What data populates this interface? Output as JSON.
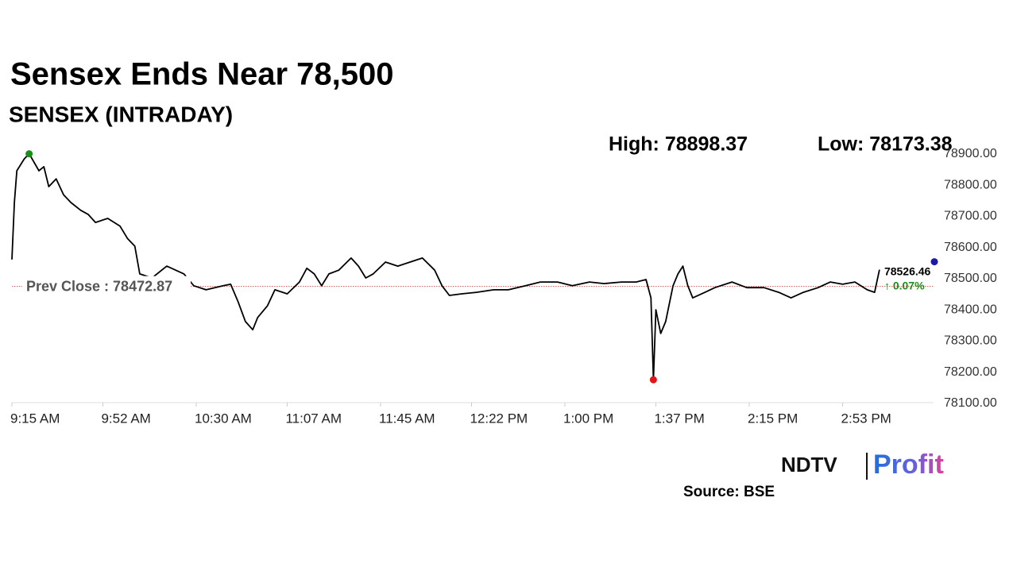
{
  "chart_data": {
    "type": "line",
    "title": "Sensex Ends Near 78,500",
    "subtitle": "SENSEX (INTRADAY)",
    "x": [
      "9:15 AM",
      "9:16 AM",
      "9:17 AM",
      "9:20 AM",
      "9:22 AM",
      "9:26 AM",
      "9:28 AM",
      "9:30 AM",
      "9:33 AM",
      "9:36 AM",
      "9:39 AM",
      "9:43 AM",
      "9:46 AM",
      "9:49 AM",
      "9:54 AM",
      "9:59 AM",
      "10:02 AM",
      "10:05 AM",
      "10:07 AM",
      "10:12 AM",
      "10:18 AM",
      "10:25 AM",
      "10:29 AM",
      "10:34 AM",
      "10:41 AM",
      "10:44 AM",
      "10:47 AM",
      "10:50 AM",
      "10:53 AM",
      "10:55 AM",
      "10:59 AM",
      "11:02 AM",
      "11:07 AM",
      "11:12 AM",
      "11:15 AM",
      "11:18 AM",
      "11:21 AM",
      "11:24 AM",
      "11:28 AM",
      "11:33 AM",
      "11:36 AM",
      "11:39 AM",
      "11:42 AM",
      "11:47 AM",
      "11:52 AM",
      "11:57 AM",
      "12:02 PM",
      "12:07 PM",
      "12:10 PM",
      "12:13 PM",
      "12:18 PM",
      "12:24 PM",
      "12:31 PM",
      "12:37 PM",
      "12:44 PM",
      "12:50 PM",
      "12:57 PM",
      "1:03 PM",
      "1:10 PM",
      "1:16 PM",
      "1:23 PM",
      "1:29 PM",
      "1:33 PM",
      "1:35 PM",
      "1:36 PM",
      "1:37 PM",
      "1:39 PM",
      "1:41 PM",
      "1:44 PM",
      "1:46 PM",
      "1:48 PM",
      "1:50 PM",
      "1:52 PM",
      "1:57 PM",
      "2:01 PM",
      "2:08 PM",
      "2:14 PM",
      "2:21 PM",
      "2:27 PM",
      "2:32 PM",
      "2:37 PM",
      "2:43 PM",
      "2:48 PM",
      "2:53 PM",
      "2:58 PM",
      "3:03 PM",
      "3:06 PM",
      "3:08 PM"
    ],
    "values": [
      78559,
      78742,
      78844,
      78882,
      78898.37,
      78844,
      78857,
      78793,
      78818,
      78767,
      78742,
      78717,
      78704,
      78678,
      78691,
      78666,
      78627,
      78602,
      78513,
      78500,
      78538,
      78513,
      78475,
      78462,
      78475,
      78480,
      78424,
      78360,
      78334,
      78373,
      78411,
      78462,
      78449,
      78487,
      78531,
      78513,
      78475,
      78513,
      78525,
      78564,
      78538,
      78500,
      78513,
      78551,
      78538,
      78551,
      78564,
      78525,
      78475,
      78444,
      78449,
      78454,
      78462,
      78462,
      78475,
      78487,
      78487,
      78475,
      78487,
      78482,
      78487,
      78487,
      78495,
      78436,
      78173.38,
      78398,
      78322,
      78360,
      78475,
      78513,
      78538,
      78475,
      78436,
      78454,
      78469,
      78487,
      78469,
      78469,
      78454,
      78436,
      78454,
      78469,
      78487,
      78480,
      78487,
      78462,
      78454,
      78526.46
    ],
    "color": "#000000",
    "xlim": [
      "9:15 AM",
      "3:30 PM"
    ],
    "xticks": [
      "9:15 AM",
      "9:52 AM",
      "10:30 AM",
      "11:07 AM",
      "11:45 AM",
      "12:22 PM",
      "1:00 PM",
      "1:37 PM",
      "2:15 PM",
      "2:53 PM"
    ],
    "ylim": [
      78100,
      78900
    ],
    "yticks": [
      {
        "value": 78100,
        "label": "78100.00"
      },
      {
        "value": 78200,
        "label": "78200.00"
      },
      {
        "value": 78300,
        "label": "78300.00"
      },
      {
        "value": 78400,
        "label": "78400.00"
      },
      {
        "value": 78500,
        "label": "78500.00"
      },
      {
        "value": 78600,
        "label": "78600.00"
      },
      {
        "value": 78700,
        "label": "78700.00"
      },
      {
        "value": 78800,
        "label": "78800.00"
      },
      {
        "value": 78900,
        "label": "78900.00"
      }
    ],
    "high": 78898.37,
    "high_label": "High: 78898.37",
    "high_color": "#1a8f1a",
    "low": 78173.38,
    "low_label": "Low: 78173.38",
    "low_color": "#e01515",
    "last_color": "#1a1aa6",
    "prev_close": 78472.87,
    "prev_close_label": "Prev Close : 78472.87",
    "prev_close_color": "#e05050",
    "change_label": "↑ 0.07%",
    "change_color": "#1a8f1a"
  },
  "logo": {
    "brand": "NDTV",
    "product": "Profit"
  },
  "source": "Source: BSE"
}
